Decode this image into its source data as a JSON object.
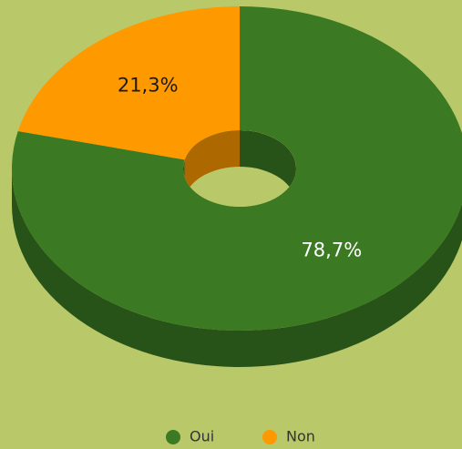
{
  "chart_data": {
    "type": "pie",
    "categories": [
      "Oui",
      "Non"
    ],
    "values": [
      78.7,
      21.3
    ],
    "value_labels": [
      "78,7%",
      "21,3%"
    ],
    "colors": [
      "#3b7a23",
      "#ff9900"
    ],
    "legend": "bottom"
  }
}
